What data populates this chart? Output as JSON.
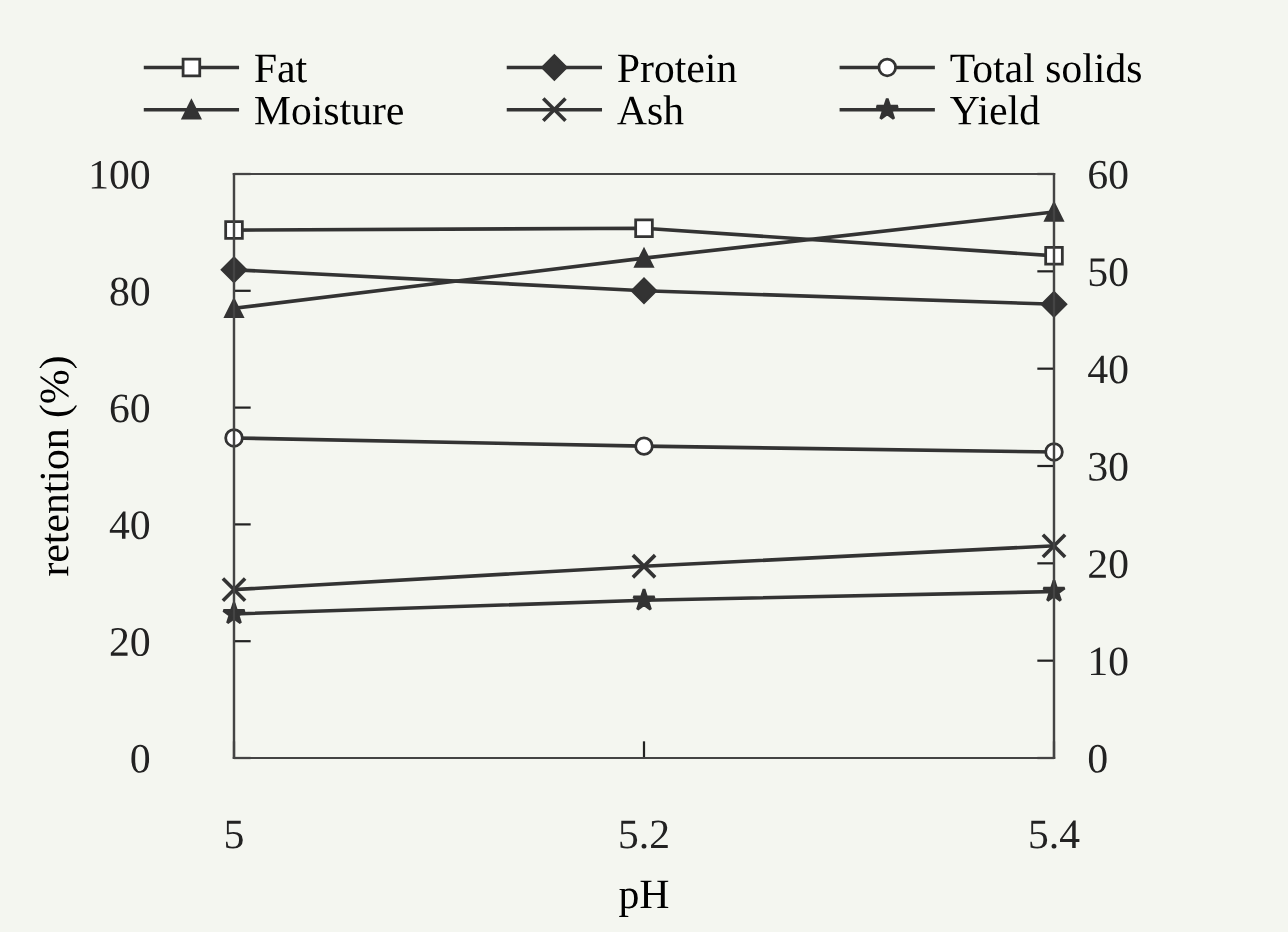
{
  "chart_data": {
    "type": "line",
    "xlabel": "pH",
    "ylabel": "retention (%)",
    "x": [
      5,
      5.2,
      5.4
    ],
    "xlim": [
      5,
      5.4
    ],
    "xticks": [
      5,
      5.2,
      5.4
    ],
    "ylim": [
      0,
      100
    ],
    "yticks": [
      0,
      20,
      40,
      60,
      80,
      100
    ],
    "y2lim": [
      0,
      60
    ],
    "y2ticks": [
      0,
      10,
      20,
      30,
      40,
      50,
      60
    ],
    "grid": false,
    "legend": "top",
    "line_style": "solid",
    "series": [
      {
        "name": "Fat",
        "color": "#333333",
        "marker": "square_open",
        "values": [
          90.4,
          90.7,
          86
        ]
      },
      {
        "name": "Protein",
        "color": "#333333",
        "marker": "diamond",
        "values": [
          83.6,
          80,
          77.7
        ]
      },
      {
        "name": "Total solids",
        "color": "#333333",
        "marker": "circle_open",
        "values": [
          54.8,
          53.4,
          52.4
        ]
      },
      {
        "name": "Moisture",
        "color": "#333333",
        "marker": "triangle",
        "values": [
          77,
          85.6,
          93.5
        ]
      },
      {
        "name": "Ash",
        "color": "#333333",
        "marker": "cross",
        "axis": "y2",
        "values": [
          17.3,
          19.7,
          21.8
        ]
      },
      {
        "name": "Yield",
        "color": "#333333",
        "marker": "star",
        "axis": "y2",
        "values": [
          14.8,
          16.2,
          17.1
        ]
      }
    ]
  }
}
